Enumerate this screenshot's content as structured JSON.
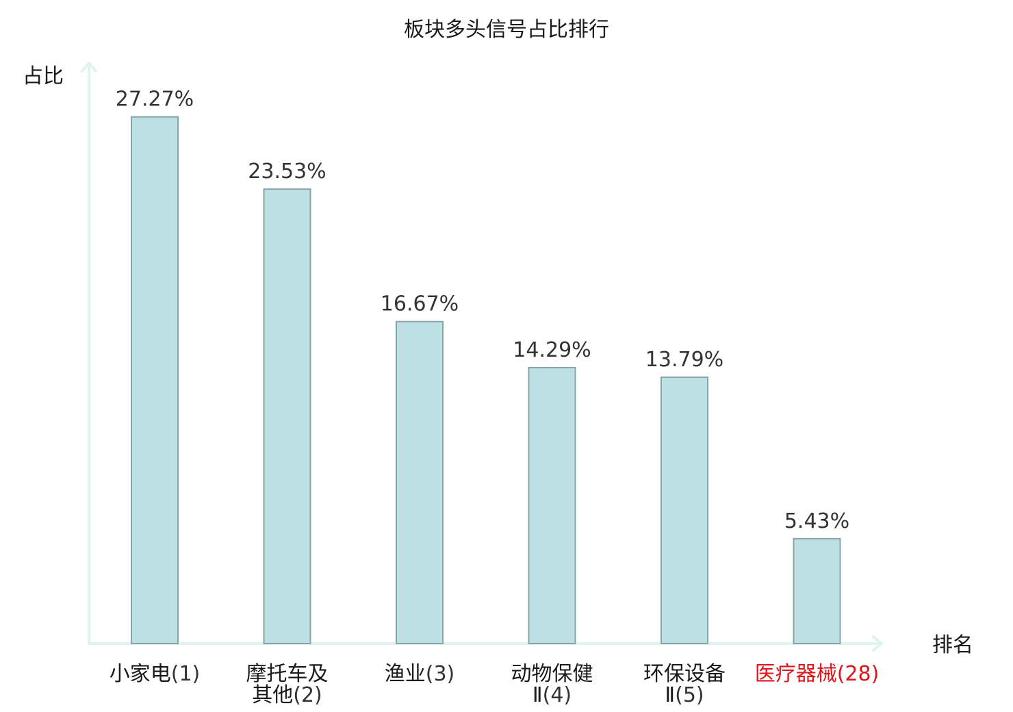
{
  "chart_data": {
    "type": "bar",
    "title": "板块多头信号占比排行",
    "ylabel": "占比",
    "xlabel": "排名",
    "ylim": [
      0,
      30
    ],
    "grid": false,
    "categories": [
      {
        "name_lines": [
          "小家电"
        ],
        "rank_text": "(1)",
        "highlight": false
      },
      {
        "name_lines": [
          "摩托车及",
          "其他"
        ],
        "rank_text": "(2)",
        "highlight": false
      },
      {
        "name_lines": [
          "渔业"
        ],
        "rank_text": "(3)",
        "highlight": false
      },
      {
        "name_lines": [
          "动物保健",
          "Ⅱ"
        ],
        "rank_text": "(4)",
        "highlight": false
      },
      {
        "name_lines": [
          "环保设备",
          "Ⅱ"
        ],
        "rank_text": "(5)",
        "highlight": false
      },
      {
        "name_lines": [
          "医疗器械"
        ],
        "rank_text": "(28)",
        "highlight": true
      }
    ],
    "values": [
      27.27,
      23.53,
      16.67,
      14.29,
      13.79,
      5.43
    ],
    "value_labels": [
      "27.27%",
      "23.53%",
      "16.67%",
      "14.29%",
      "13.79%",
      "5.43%"
    ],
    "colors": {
      "bar": "#bce0e3",
      "bar_border": "#88a5a6",
      "axis": "#dff3f0",
      "highlight": "#e0151b"
    }
  }
}
